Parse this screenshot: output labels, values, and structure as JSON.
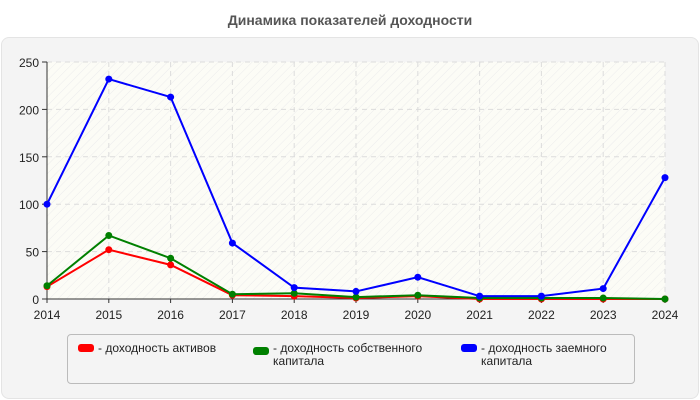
{
  "chart_data": {
    "type": "line",
    "title": "Динамика показателей доходности",
    "xlabel": "",
    "ylabel": "",
    "x": [
      2014,
      2015,
      2016,
      2017,
      2018,
      2019,
      2020,
      2021,
      2022,
      2023,
      2024
    ],
    "yticks": [
      0,
      50,
      100,
      150,
      200,
      250
    ],
    "ylim": [
      0,
      250
    ],
    "grid": true,
    "legend_position": "bottom",
    "series": [
      {
        "name": "- доходность активов",
        "color": "#ff0000",
        "values": [
          13,
          52,
          36,
          4,
          3,
          1,
          3,
          0,
          0,
          0,
          0
        ]
      },
      {
        "name": "- доходность собственного капитала",
        "color": "#008000",
        "values": [
          14,
          67,
          43,
          5,
          6,
          2,
          4,
          1,
          1,
          1,
          0
        ]
      },
      {
        "name": "- доходность заемного капитала",
        "color": "#0000ff",
        "values": [
          100,
          232,
          213,
          59,
          12,
          8,
          23,
          3,
          3,
          11,
          128
        ]
      }
    ]
  },
  "legend": {
    "items": [
      {
        "label": "- доходность активов",
        "color": "#ff0000"
      },
      {
        "label": "- доходность собственного капитала",
        "color": "#008000"
      },
      {
        "label": "- доходность заемного капитала",
        "color": "#0000ff"
      }
    ]
  }
}
